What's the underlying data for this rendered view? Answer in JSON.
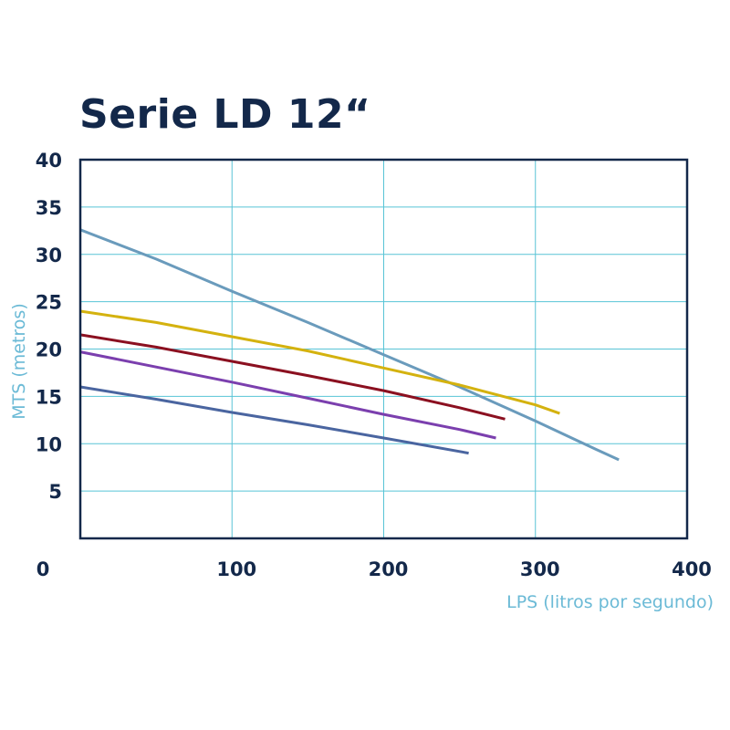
{
  "chart_data": {
    "type": "line",
    "title": "Serie LD 12“",
    "xlabel": "LPS (litros por segundo)",
    "ylabel": "MTS (metros)",
    "xlim": [
      0,
      400
    ],
    "ylim": [
      0,
      40
    ],
    "x_zero_label": "0",
    "xticks": [
      100,
      200,
      300,
      400
    ],
    "yticks": [
      5,
      10,
      15,
      20,
      25,
      30,
      35,
      40
    ],
    "grid": true,
    "legend": "none",
    "series": [
      {
        "color": "#6a9bbc",
        "points": [
          [
            0,
            32.6
          ],
          [
            50,
            29.5
          ],
          [
            100,
            26.1
          ],
          [
            150,
            22.8
          ],
          [
            200,
            19.4
          ],
          [
            250,
            16.0
          ],
          [
            300,
            12.4
          ],
          [
            340,
            9.4
          ],
          [
            355,
            8.3
          ]
        ]
      },
      {
        "color": "#d4b20f",
        "points": [
          [
            0,
            24.0
          ],
          [
            50,
            22.8
          ],
          [
            100,
            21.3
          ],
          [
            150,
            19.8
          ],
          [
            200,
            18.0
          ],
          [
            250,
            16.2
          ],
          [
            300,
            14.1
          ],
          [
            316,
            13.2
          ]
        ]
      },
      {
        "color": "#8b1020",
        "points": [
          [
            0,
            21.5
          ],
          [
            50,
            20.2
          ],
          [
            100,
            18.7
          ],
          [
            150,
            17.2
          ],
          [
            200,
            15.6
          ],
          [
            250,
            13.8
          ],
          [
            280,
            12.6
          ]
        ]
      },
      {
        "color": "#7b3fae",
        "points": [
          [
            0,
            19.7
          ],
          [
            50,
            18.1
          ],
          [
            100,
            16.5
          ],
          [
            150,
            14.8
          ],
          [
            200,
            13.1
          ],
          [
            250,
            11.5
          ],
          [
            274,
            10.6
          ]
        ]
      },
      {
        "color": "#4a65a0",
        "points": [
          [
            0,
            16.0
          ],
          [
            50,
            14.7
          ],
          [
            100,
            13.3
          ],
          [
            150,
            12.0
          ],
          [
            200,
            10.6
          ],
          [
            256,
            9.0
          ]
        ]
      }
    ]
  },
  "colors": {
    "title": "#13284a",
    "frame": "#13284a",
    "grid": "#58c4d6",
    "axis_label": "#6bbad6"
  }
}
